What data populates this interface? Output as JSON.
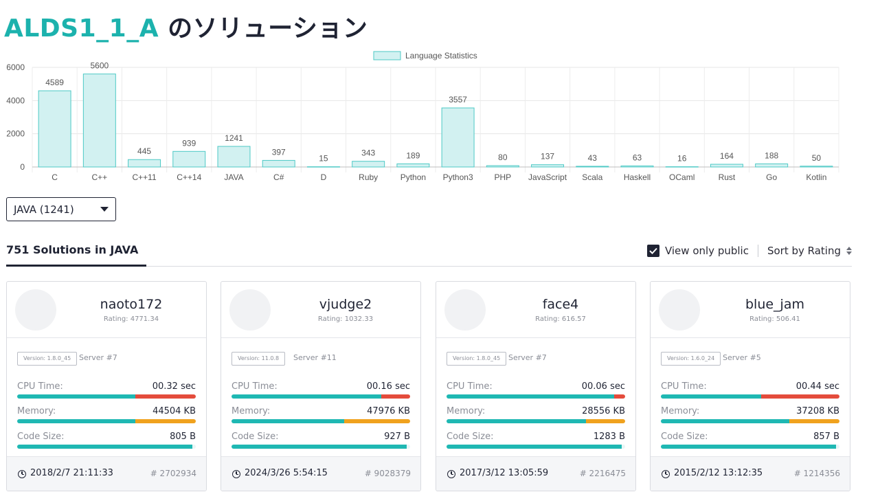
{
  "page": {
    "problem_id": "ALDS1_1_A",
    "title_suffix": "のソリューション"
  },
  "chart_data": {
    "type": "bar",
    "legend": "Language Statistics",
    "legend_position": "top-center",
    "categories": [
      "C",
      "C++",
      "C++11",
      "C++14",
      "JAVA",
      "C#",
      "D",
      "Ruby",
      "Python",
      "Python3",
      "PHP",
      "JavaScript",
      "Scala",
      "Haskell",
      "OCaml",
      "Rust",
      "Go",
      "Kotlin"
    ],
    "values": [
      4589,
      5600,
      445,
      939,
      1241,
      397,
      15,
      343,
      189,
      3557,
      80,
      137,
      43,
      63,
      16,
      164,
      188,
      50
    ],
    "yticks": [
      0,
      2000,
      4000,
      6000
    ],
    "ylim": [
      0,
      6000
    ],
    "grid": true,
    "colors": {
      "fill": "#d2f1f1",
      "stroke": "#4cc9c5"
    }
  },
  "language_select": {
    "value": "JAVA (1241)"
  },
  "tabs": {
    "active_label": "751 Solutions in JAVA",
    "view_public_label": "View only public",
    "view_public_checked": true,
    "sort_label": "Sort by Rating"
  },
  "metric_labels": {
    "cpu": "CPU Time:",
    "memory": "Memory:",
    "code": "Code Size:"
  },
  "colors": {
    "teal": "#1fb8b3",
    "red": "#e44c3c",
    "orange": "#f0a21e",
    "track": "#e8f6f6"
  },
  "cards": [
    {
      "user": "naoto172",
      "rating": "Rating: 4771.34",
      "version": "Version: 1.8.0_45",
      "server": "Server #7",
      "cpu": "00.32 sec",
      "cpu_fill": 0.66,
      "memory": "44504 KB",
      "memory_fill": 0.66,
      "code": "805 B",
      "code_fill": 0.98,
      "date": "2018/2/7 21:11:33",
      "id": "# 2702934"
    },
    {
      "user": "vjudge2",
      "rating": "Rating: 1032.33",
      "version": "Version: 11.0.8",
      "server": "Server #11",
      "cpu": "00.16 sec",
      "cpu_fill": 0.84,
      "memory": "47976 KB",
      "memory_fill": 0.63,
      "code": "927 B",
      "code_fill": 0.98,
      "date": "2024/3/26 5:54:15",
      "id": "# 9028379"
    },
    {
      "user": "face4",
      "rating": "Rating: 616.57",
      "version": "Version: 1.8.0_45",
      "server": "Server #7",
      "cpu": "00.06 sec",
      "cpu_fill": 0.94,
      "memory": "28556 KB",
      "memory_fill": 0.78,
      "code": "1283 B",
      "code_fill": 0.98,
      "date": "2017/3/12 13:05:59",
      "id": "# 2216475"
    },
    {
      "user": "blue_jam",
      "rating": "Rating: 506.41",
      "version": "Version: 1.6.0_24",
      "server": "Server #5",
      "cpu": "00.44 sec",
      "cpu_fill": 0.56,
      "memory": "37208 KB",
      "memory_fill": 0.72,
      "code": "857 B",
      "code_fill": 0.98,
      "date": "2015/2/12 13:12:35",
      "id": "# 1214356"
    }
  ]
}
